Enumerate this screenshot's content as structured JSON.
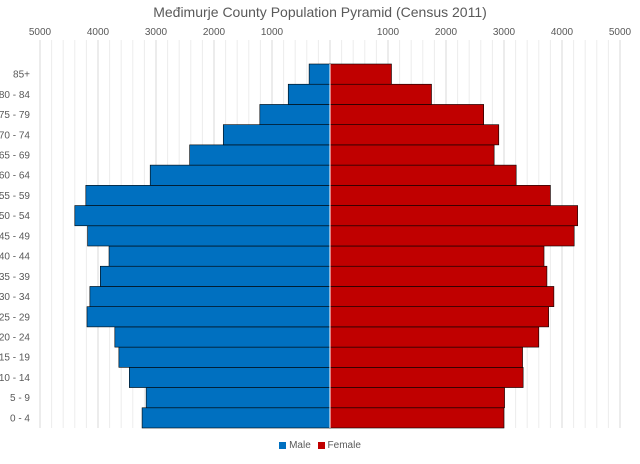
{
  "chart_data": {
    "type": "bar",
    "orientation": "horizontal-diverging",
    "title": "Međimurje County Population Pyramid (Census 2011)",
    "categories": [
      "0 - 4",
      "5 - 9",
      "10 - 14",
      "15 - 19",
      "20 - 24",
      "25 - 29",
      "30 - 34",
      "35 - 39",
      "40 - 44",
      "45 - 49",
      "50 - 54",
      "55 - 59",
      "60 - 64",
      "65 - 69",
      "70 - 74",
      "75 - 79",
      "80 - 84",
      "85+"
    ],
    "series": [
      {
        "name": "Male",
        "color": "#0070C0",
        "values": [
          3240,
          3170,
          3460,
          3640,
          3710,
          4190,
          4140,
          3960,
          3810,
          4180,
          4400,
          4210,
          3100,
          2420,
          1840,
          1210,
          720,
          360
        ]
      },
      {
        "name": "Female",
        "color": "#C00000",
        "values": [
          3000,
          3010,
          3330,
          3320,
          3600,
          3770,
          3860,
          3740,
          3690,
          4210,
          4270,
          3800,
          3210,
          2830,
          2910,
          2650,
          1750,
          1060
        ]
      }
    ],
    "x_ticks": [
      "5000",
      "4000",
      "3000",
      "2000",
      "1000",
      "",
      "1000",
      "2000",
      "3000",
      "4000",
      "5000"
    ],
    "xlim": [
      -5000,
      5000
    ],
    "axis_position": "top",
    "grid": true,
    "legend_position": "bottom"
  }
}
